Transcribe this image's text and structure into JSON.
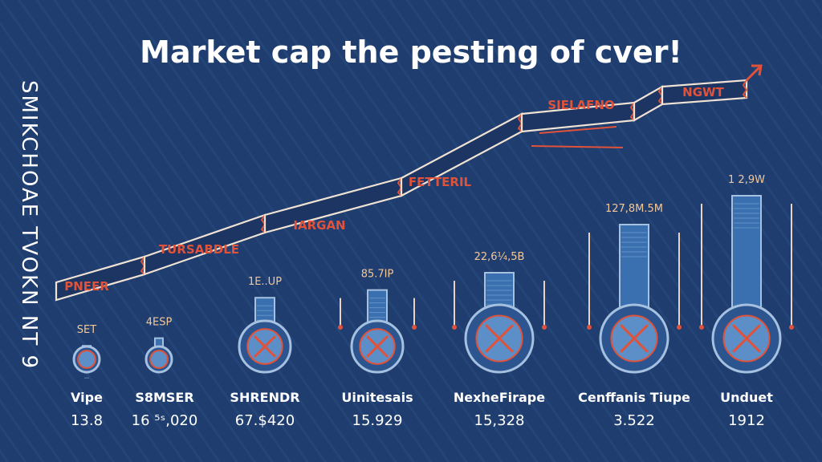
{
  "chart_data": {
    "type": "bar",
    "title": "Market cap the pesting of cver!",
    "ylabel": "SMIKCHOAE TVOKN NT 9",
    "trend_labels": [
      "PNEER",
      "TURSABDLE",
      "IARGAN",
      "FETTERIL",
      "SIELAFNO",
      "NGWT"
    ],
    "categories": [
      "Vipe",
      "S8MSER",
      "SHRENDR",
      "Uinitesais",
      "NexheFirape",
      "Cenffanis Tiupe",
      "Unduet"
    ],
    "values_text": [
      "13.8",
      "16 ⁵ˢ,020",
      "67.$420",
      "15.929",
      "15,328",
      "3.522",
      "1912"
    ],
    "value_labels": [
      "SET",
      "4ESP",
      "1E..UP",
      "85.7IP",
      "22,6¼,5B",
      "127,8M.5M",
      "1 2,9W"
    ],
    "bar_levels": [
      0.07,
      0.11,
      0.32,
      0.36,
      0.45,
      0.7,
      0.85
    ],
    "colors": {
      "background": "#1f3d6e",
      "accent": "#e0523a",
      "bar_fill": "#3a6fb0",
      "bar_stroke": "#a6c0e0",
      "text": "#ffffff",
      "label_text": "#f2c89a"
    }
  }
}
